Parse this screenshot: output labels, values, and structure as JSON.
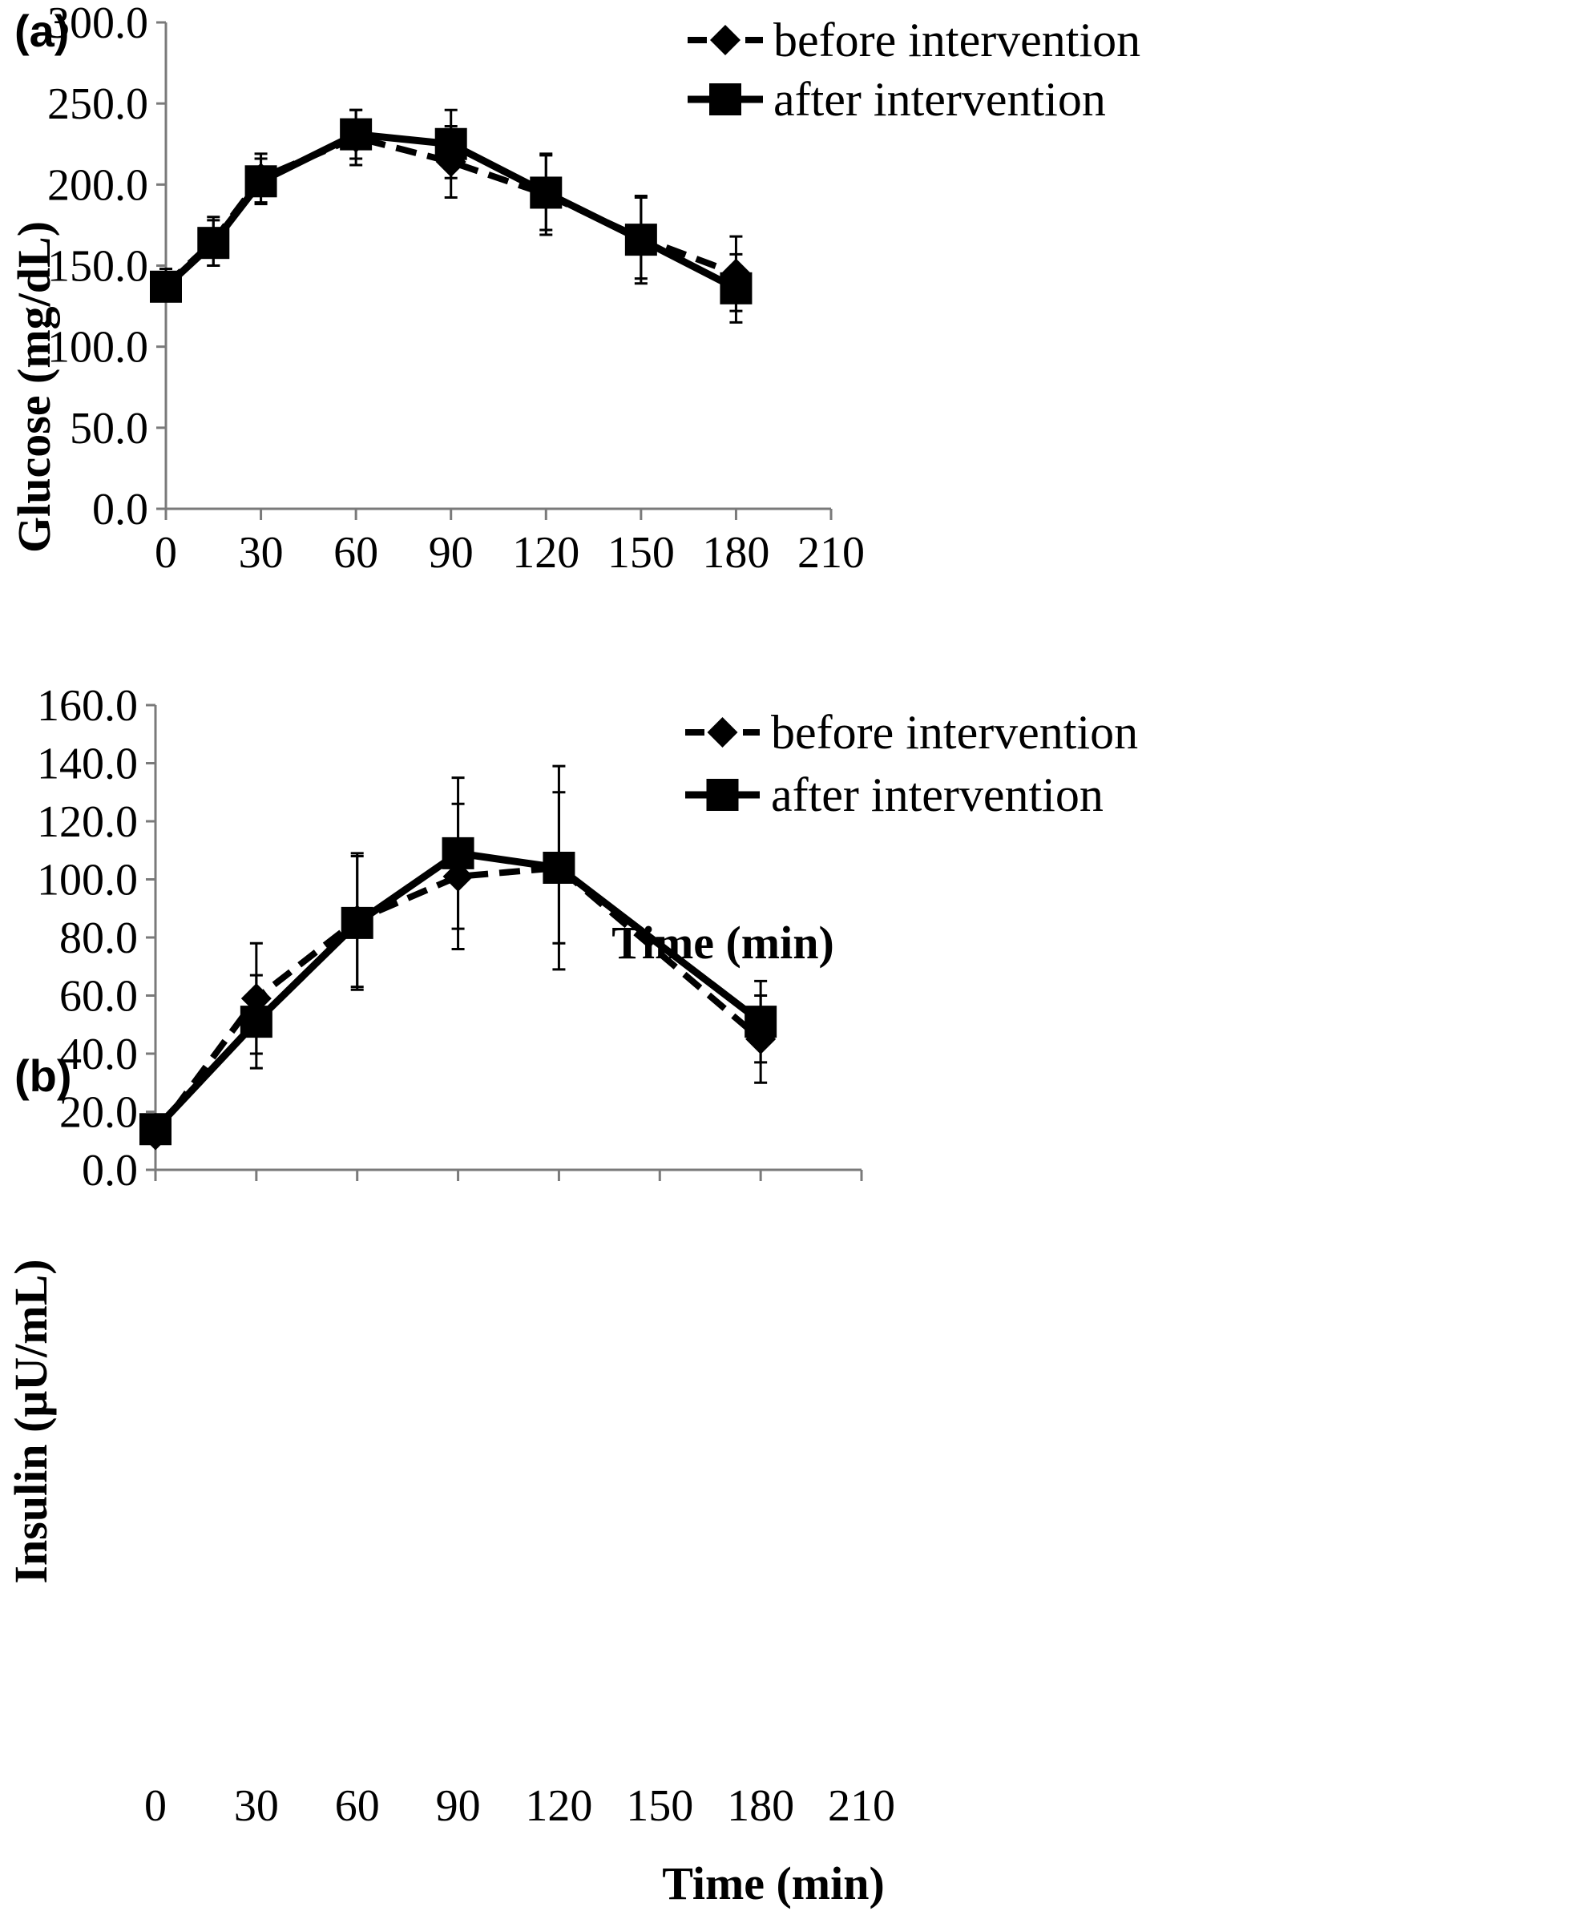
{
  "chart_data": [
    {
      "type": "line",
      "panel_label": "(a)",
      "xlabel": "Time (min)",
      "ylabel": "Glucose (mg/dL)",
      "xlim": [
        0,
        210
      ],
      "ylim": [
        0,
        300
      ],
      "xticks": [
        "0",
        "30",
        "60",
        "90",
        "120",
        "150",
        "180",
        "210"
      ],
      "yticks": [
        "0.0",
        "50.0",
        "100.0",
        "150.0",
        "200.0",
        "250.0",
        "300.0"
      ],
      "grid": false,
      "legend": "top-right",
      "series": [
        {
          "name": "before intervention",
          "style": "dashed",
          "marker": "diamond",
          "x": [
            0,
            15,
            30,
            60,
            90,
            120,
            150,
            180
          ],
          "y": [
            138,
            165,
            204,
            229,
            214,
            194,
            167,
            145
          ],
          "err": [
            10,
            15,
            15,
            17,
            22,
            25,
            25,
            23
          ]
        },
        {
          "name": "after intervention",
          "style": "solid",
          "marker": "square",
          "x": [
            0,
            15,
            30,
            60,
            90,
            120,
            150,
            180
          ],
          "y": [
            137,
            164,
            202,
            231,
            225,
            195,
            166,
            136
          ],
          "err": [
            8,
            14,
            14,
            15,
            21,
            23,
            27,
            21
          ]
        }
      ]
    },
    {
      "type": "line",
      "panel_label": "(b)",
      "xlabel": "Time (min)",
      "ylabel": "Insulin (μU/mL)",
      "xlim": [
        0,
        210
      ],
      "ylim": [
        0,
        160
      ],
      "xticks": [
        "0",
        "30",
        "60",
        "90",
        "120",
        "150",
        "180",
        "210"
      ],
      "yticks": [
        "0.0",
        "20.0",
        "40.0",
        "60.0",
        "80.0",
        "100.0",
        "120.0",
        "140.0",
        "160.0"
      ],
      "grid": false,
      "legend": "top-right",
      "series": [
        {
          "name": "before intervention",
          "style": "dashed",
          "marker": "diamond",
          "x": [
            0,
            30,
            60,
            90,
            120,
            180
          ],
          "y": [
            12,
            59,
            86,
            101,
            104,
            45
          ],
          "err": [
            3,
            19,
            23,
            25,
            26,
            15
          ]
        },
        {
          "name": "after intervention",
          "style": "solid",
          "marker": "square",
          "x": [
            0,
            30,
            60,
            90,
            120,
            180
          ],
          "y": [
            14,
            51,
            85,
            109,
            104,
            51
          ],
          "err": [
            3,
            16,
            23,
            26,
            35,
            14
          ]
        }
      ]
    }
  ],
  "colors": {
    "line": "#000000",
    "axis": "#7a7a7a",
    "background": "#ffffff"
  }
}
